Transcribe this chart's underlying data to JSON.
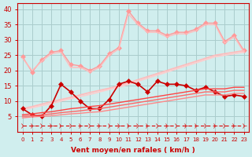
{
  "xlabel": "Vent moyen/en rafales ( km/h )",
  "x": [
    0,
    1,
    2,
    3,
    4,
    5,
    6,
    7,
    8,
    9,
    10,
    11,
    12,
    13,
    14,
    15,
    16,
    17,
    18,
    19,
    20,
    21,
    22,
    23
  ],
  "bg_color": "#d0eeee",
  "grid_color": "#aacccc",
  "lines": [
    {
      "key": "line_pink_marker",
      "y": [
        24.5,
        19.5,
        23.5,
        26.0,
        26.5,
        22.0,
        21.5,
        20.0,
        21.5,
        25.5,
        27.5,
        39.5,
        35.5,
        33.0,
        33.0,
        31.5,
        32.5,
        32.5,
        33.5,
        35.5,
        35.5,
        29.5,
        31.5,
        26.5
      ],
      "color": "#ff9999",
      "marker": "D",
      "ms": 3,
      "lw": 1.0,
      "dashes": null
    },
    {
      "key": "line_pink_plain",
      "y": [
        24.0,
        20.0,
        23.0,
        25.5,
        26.0,
        21.0,
        21.0,
        19.5,
        21.0,
        25.0,
        27.0,
        38.5,
        35.0,
        32.5,
        32.5,
        31.0,
        32.0,
        32.0,
        33.0,
        35.0,
        35.0,
        29.0,
        31.0,
        26.0
      ],
      "color": "#ffbbbb",
      "marker": null,
      "ms": 0,
      "lw": 1.0,
      "dashes": null
    },
    {
      "key": "line_slope1",
      "y": [
        7.5,
        8.2,
        9.0,
        9.8,
        10.5,
        11.2,
        12.0,
        12.8,
        13.5,
        14.2,
        15.0,
        16.0,
        17.0,
        18.0,
        19.0,
        20.0,
        21.0,
        22.0,
        23.0,
        24.0,
        25.0,
        25.5,
        26.0,
        26.5
      ],
      "color": "#ffbbbb",
      "marker": null,
      "ms": 0,
      "lw": 1.2,
      "dashes": null
    },
    {
      "key": "line_slope2",
      "y": [
        7.0,
        7.8,
        8.5,
        9.2,
        10.0,
        10.8,
        11.5,
        12.2,
        13.0,
        13.8,
        14.5,
        15.5,
        16.5,
        17.5,
        18.5,
        19.5,
        20.5,
        21.5,
        22.5,
        23.5,
        24.5,
        25.0,
        25.5,
        26.0
      ],
      "color": "#ffcccc",
      "marker": null,
      "ms": 0,
      "lw": 1.2,
      "dashes": null
    },
    {
      "key": "line_red_marker",
      "y": [
        7.5,
        5.5,
        5.0,
        8.5,
        15.5,
        13.0,
        10.0,
        7.5,
        7.5,
        10.5,
        15.5,
        16.5,
        15.5,
        13.0,
        16.5,
        15.5,
        15.5,
        15.0,
        13.5,
        14.5,
        13.0,
        11.5,
        12.0,
        11.5
      ],
      "color": "#cc0000",
      "marker": "D",
      "ms": 3,
      "lw": 1.2,
      "dashes": null
    },
    {
      "key": "line_slope3",
      "y": [
        5.5,
        5.8,
        6.2,
        6.5,
        7.0,
        7.5,
        7.8,
        8.2,
        8.5,
        9.0,
        9.5,
        10.0,
        10.5,
        11.0,
        11.5,
        12.0,
        12.5,
        13.0,
        13.5,
        14.0,
        14.0,
        14.0,
        14.5,
        14.5
      ],
      "color": "#ff4444",
      "marker": null,
      "ms": 0,
      "lw": 1.0,
      "dashes": null
    },
    {
      "key": "line_slope4",
      "y": [
        5.0,
        5.2,
        5.5,
        5.8,
        6.2,
        6.5,
        6.8,
        7.2,
        7.5,
        8.0,
        8.5,
        9.0,
        9.5,
        10.0,
        10.5,
        11.0,
        11.5,
        12.0,
        12.5,
        13.0,
        13.0,
        13.0,
        13.5,
        13.5
      ],
      "color": "#ff6666",
      "marker": null,
      "ms": 0,
      "lw": 1.0,
      "dashes": null
    },
    {
      "key": "line_slope5",
      "y": [
        4.5,
        4.8,
        5.0,
        5.2,
        5.5,
        5.8,
        6.0,
        6.3,
        6.5,
        7.0,
        7.5,
        8.0,
        8.5,
        9.0,
        9.5,
        10.0,
        10.5,
        11.0,
        11.5,
        12.0,
        12.0,
        12.0,
        12.5,
        12.5
      ],
      "color": "#ff8888",
      "marker": null,
      "ms": 0,
      "lw": 1.0,
      "dashes": null
    },
    {
      "key": "line_dashed",
      "y": [
        2.0,
        2.0,
        2.0,
        2.0,
        2.0,
        2.0,
        2.0,
        2.0,
        2.0,
        2.0,
        2.0,
        2.0,
        2.0,
        2.0,
        2.0,
        2.0,
        2.0,
        2.0,
        2.0,
        2.0,
        2.0,
        2.0,
        2.0,
        2.0
      ],
      "color": "#dd0000",
      "marker": "4",
      "ms": 5,
      "lw": 0.8,
      "dashes": [
        4,
        3
      ]
    }
  ],
  "ylim": [
    0,
    42
  ],
  "yticks": [
    5,
    10,
    15,
    20,
    25,
    30,
    35,
    40
  ],
  "axis_color": "#cc0000"
}
